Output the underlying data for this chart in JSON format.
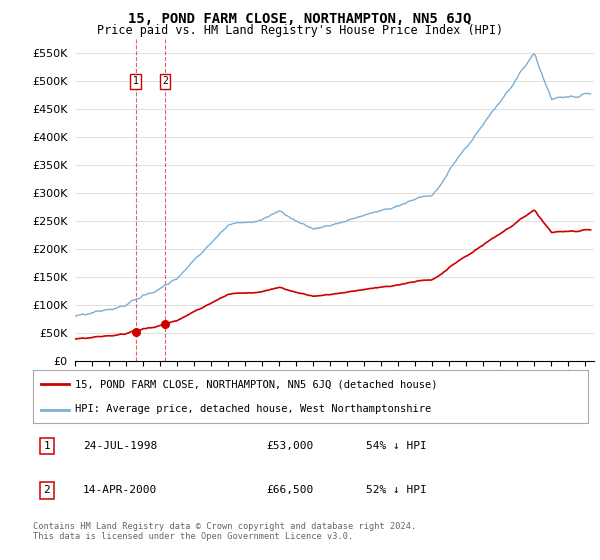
{
  "title": "15, POND FARM CLOSE, NORTHAMPTON, NN5 6JQ",
  "subtitle": "Price paid vs. HM Land Registry's House Price Index (HPI)",
  "ylabel_ticks": [
    "£0",
    "£50K",
    "£100K",
    "£150K",
    "£200K",
    "£250K",
    "£300K",
    "£350K",
    "£400K",
    "£450K",
    "£500K",
    "£550K"
  ],
  "ytick_values": [
    0,
    50000,
    100000,
    150000,
    200000,
    250000,
    300000,
    350000,
    400000,
    450000,
    500000,
    550000
  ],
  "ylim": [
    0,
    575000
  ],
  "xlim_start": 1995.0,
  "xlim_end": 2025.5,
  "purchases": [
    {
      "date_num": 1998.56,
      "price": 53000,
      "label": "1",
      "date_str": "24-JUL-1998",
      "pct": "54% ↓ HPI"
    },
    {
      "date_num": 2000.29,
      "price": 66500,
      "label": "2",
      "date_str": "14-APR-2000",
      "pct": "52% ↓ HPI"
    }
  ],
  "legend_property_label": "15, POND FARM CLOSE, NORTHAMPTON, NN5 6JQ (detached house)",
  "legend_hpi_label": "HPI: Average price, detached house, West Northamptonshire",
  "footer": "Contains HM Land Registry data © Crown copyright and database right 2024.\nThis data is licensed under the Open Government Licence v3.0.",
  "property_color": "#cc0000",
  "hpi_color": "#7bafd4",
  "background_color": "#ffffff"
}
